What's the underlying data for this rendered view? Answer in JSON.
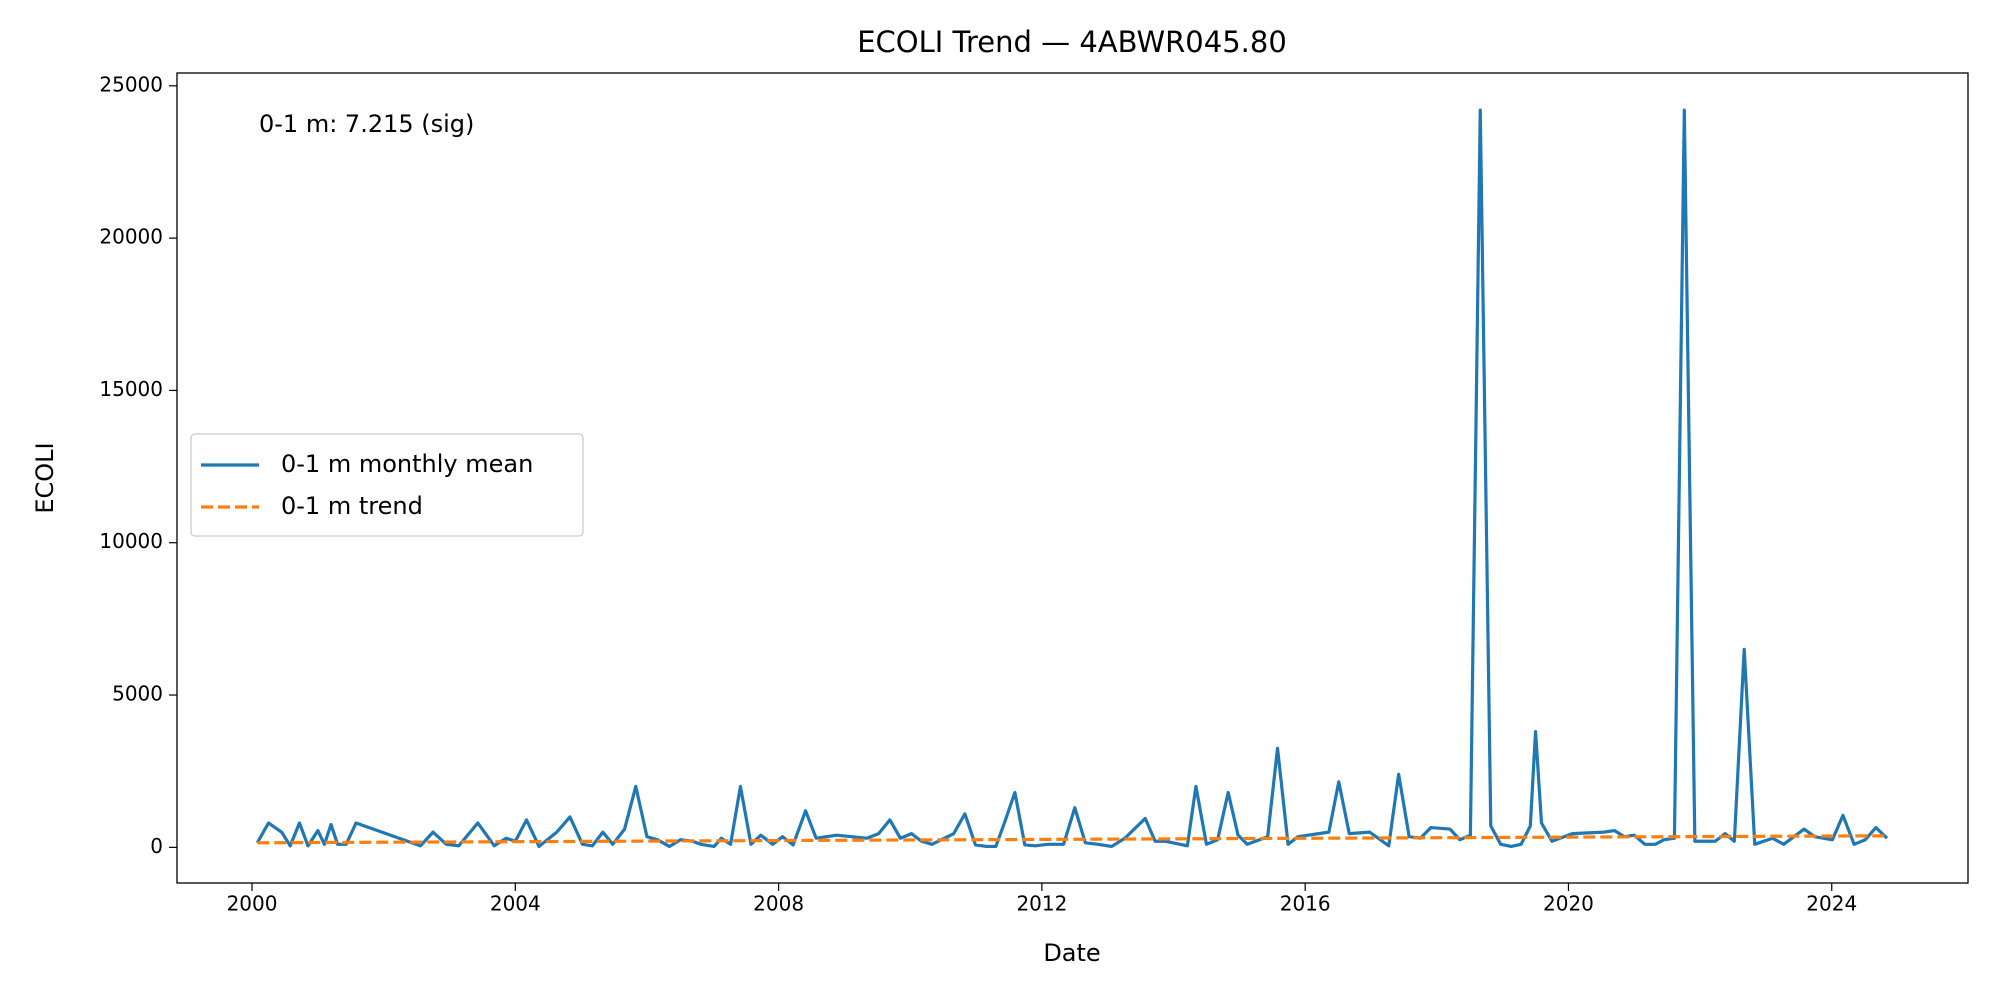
{
  "chart_data": {
    "type": "line",
    "title": "ECOLI Trend — 4ABWR045.80",
    "xlabel": "Date",
    "ylabel": "ECOLI",
    "annotation": "0-1 m: 7.215 (sig)",
    "xlim": [
      1998.86,
      2026.07
    ],
    "xticks": [
      2000,
      2004,
      2008,
      2012,
      2016,
      2020,
      2024
    ],
    "ylim": [
      -1170,
      25420
    ],
    "yticks": [
      0,
      5000,
      10000,
      15000,
      20000,
      25000
    ],
    "legend": "center left",
    "series": [
      {
        "name": "0-1 m monthly mean",
        "color": "#1f77b4",
        "dash": false,
        "x": [
          2000.08,
          2000.25,
          2000.45,
          2000.58,
          2000.72,
          2000.85,
          2001.0,
          2001.1,
          2001.2,
          2001.3,
          2001.43,
          2001.58,
          2002.56,
          2002.75,
          2002.95,
          2003.14,
          2003.43,
          2003.68,
          2003.86,
          2004.0,
          2004.17,
          2004.36,
          2004.63,
          2004.83,
          2005.02,
          2005.17,
          2005.33,
          2005.48,
          2005.66,
          2005.83,
          2006.0,
          2006.16,
          2006.34,
          2006.51,
          2006.69,
          2006.82,
          2007.02,
          2007.13,
          2007.27,
          2007.42,
          2007.58,
          2007.73,
          2007.91,
          2008.06,
          2008.22,
          2008.41,
          2008.57,
          2008.88,
          2009.34,
          2009.52,
          2009.69,
          2009.85,
          2010.02,
          2010.17,
          2010.33,
          2010.66,
          2010.83,
          2010.99,
          2011.16,
          2011.3,
          2011.43,
          2011.59,
          2011.74,
          2011.9,
          2012.09,
          2012.33,
          2012.5,
          2012.66,
          2012.85,
          2013.06,
          2013.26,
          2013.57,
          2013.72,
          2013.88,
          2014.21,
          2014.34,
          2014.5,
          2014.67,
          2014.83,
          2014.98,
          2015.12,
          2015.43,
          2015.58,
          2015.74,
          2015.89,
          2016.36,
          2016.51,
          2016.67,
          2016.98,
          2017.27,
          2017.42,
          2017.58,
          2017.75,
          2017.91,
          2018.2,
          2018.35,
          2018.51,
          2018.66,
          2018.82,
          2018.97,
          2019.13,
          2019.28,
          2019.42,
          2019.5,
          2019.59,
          2019.75,
          2020.06,
          2020.54,
          2020.7,
          2020.85,
          2021.0,
          2021.16,
          2021.32,
          2021.45,
          2021.61,
          2021.76,
          2021.92,
          2022.23,
          2022.38,
          2022.52,
          2022.67,
          2022.83,
          2023.1,
          2023.27,
          2023.58,
          2023.74,
          2024.01,
          2024.17,
          2024.34,
          2024.51,
          2024.67,
          2024.84
        ],
        "values": [
          150,
          800,
          500,
          50,
          800,
          50,
          550,
          100,
          750,
          100,
          100,
          800,
          50,
          500,
          100,
          50,
          800,
          50,
          300,
          200,
          900,
          30,
          500,
          1000,
          100,
          50,
          500,
          100,
          600,
          2000,
          350,
          250,
          30,
          250,
          200,
          100,
          30,
          300,
          100,
          2000,
          100,
          400,
          100,
          350,
          80,
          1200,
          300,
          400,
          300,
          450,
          900,
          300,
          450,
          200,
          100,
          450,
          1100,
          80,
          30,
          30,
          800,
          1800,
          80,
          50,
          100,
          100,
          1300,
          150,
          100,
          30,
          300,
          950,
          200,
          200,
          50,
          2000,
          100,
          250,
          1800,
          400,
          100,
          350,
          3250,
          100,
          350,
          500,
          2150,
          450,
          500,
          50,
          2400,
          350,
          300,
          650,
          600,
          250,
          400,
          24200,
          700,
          100,
          30,
          100,
          700,
          3800,
          800,
          200,
          450,
          500,
          550,
          350,
          400,
          100,
          100,
          250,
          300,
          24200,
          200,
          200,
          450,
          200,
          6500,
          100,
          300,
          100,
          600,
          350,
          250,
          1050,
          100,
          250,
          650,
          300
        ]
      },
      {
        "name": "0-1 m trend",
        "color": "#ff7f0e",
        "dash": true,
        "x": [
          2000.08,
          2024.84
        ],
        "values": [
          150,
          380
        ]
      }
    ]
  }
}
